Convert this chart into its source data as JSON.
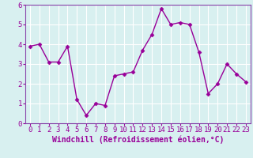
{
  "x": [
    0,
    1,
    2,
    3,
    4,
    5,
    6,
    7,
    8,
    9,
    10,
    11,
    12,
    13,
    14,
    15,
    16,
    17,
    18,
    19,
    20,
    21,
    22,
    23
  ],
  "y": [
    3.9,
    4.0,
    3.1,
    3.1,
    3.9,
    1.2,
    0.4,
    1.0,
    0.9,
    2.4,
    2.5,
    2.6,
    3.7,
    4.5,
    5.8,
    5.0,
    5.1,
    5.0,
    3.6,
    1.5,
    2.0,
    3.0,
    2.5,
    2.1
  ],
  "line_color": "#990099",
  "marker": "D",
  "markersize": 2.5,
  "linewidth": 1.0,
  "xlabel": "Windchill (Refroidissement éolien,°C)",
  "xlim": [
    -0.5,
    23.5
  ],
  "ylim": [
    0,
    6
  ],
  "yticks": [
    0,
    1,
    2,
    3,
    4,
    5,
    6
  ],
  "xticks": [
    0,
    1,
    2,
    3,
    4,
    5,
    6,
    7,
    8,
    9,
    10,
    11,
    12,
    13,
    14,
    15,
    16,
    17,
    18,
    19,
    20,
    21,
    22,
    23
  ],
  "bg_color": "#d8f0f0",
  "grid_color": "#ffffff",
  "border_color": "#8844aa",
  "xlabel_fontsize": 7.0,
  "tick_fontsize": 6.5
}
